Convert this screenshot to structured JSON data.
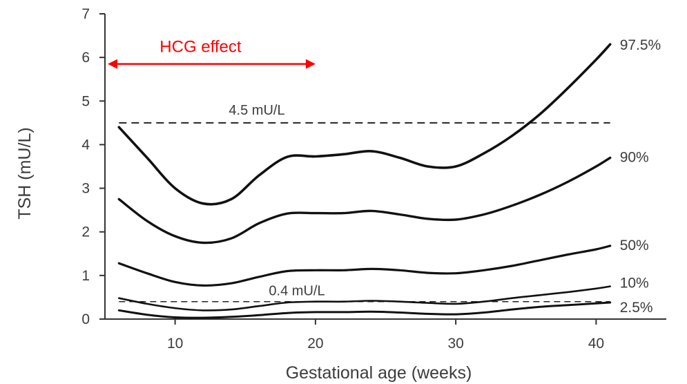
{
  "chart_data": {
    "type": "line",
    "title": "",
    "xlabel": "Gestational age (weeks)",
    "ylabel": "TSH (mU/L)",
    "xlim": [
      5,
      45
    ],
    "ylim": [
      0,
      7
    ],
    "x_ticks": [
      10,
      20,
      30,
      40
    ],
    "y_ticks": [
      0,
      1,
      2,
      3,
      4,
      5,
      6,
      7
    ],
    "grid": false,
    "legend": "none",
    "series": [
      {
        "name": "97.5%",
        "x": [
          6,
          8,
          10,
          12,
          14,
          16,
          18,
          20,
          22,
          24,
          26,
          28,
          30,
          32,
          34,
          36,
          38,
          40,
          41
        ],
        "y": [
          4.4,
          3.7,
          3.0,
          2.65,
          2.75,
          3.3,
          3.72,
          3.73,
          3.78,
          3.85,
          3.7,
          3.5,
          3.5,
          3.8,
          4.2,
          4.7,
          5.3,
          5.95,
          6.3
        ]
      },
      {
        "name": "90%",
        "x": [
          6,
          8,
          10,
          12,
          14,
          16,
          18,
          20,
          22,
          24,
          26,
          28,
          30,
          32,
          34,
          36,
          38,
          40,
          41
        ],
        "y": [
          2.75,
          2.25,
          1.9,
          1.75,
          1.85,
          2.2,
          2.42,
          2.43,
          2.43,
          2.48,
          2.4,
          2.3,
          2.28,
          2.4,
          2.6,
          2.85,
          3.15,
          3.5,
          3.7
        ]
      },
      {
        "name": "50%",
        "x": [
          6,
          8,
          10,
          12,
          14,
          16,
          18,
          20,
          22,
          24,
          26,
          28,
          30,
          32,
          34,
          36,
          38,
          40,
          41
        ],
        "y": [
          1.28,
          1.05,
          0.85,
          0.77,
          0.82,
          0.97,
          1.1,
          1.12,
          1.12,
          1.15,
          1.12,
          1.06,
          1.05,
          1.12,
          1.22,
          1.35,
          1.48,
          1.6,
          1.68
        ]
      },
      {
        "name": "10%",
        "x": [
          6,
          8,
          10,
          12,
          14,
          16,
          18,
          20,
          22,
          24,
          26,
          28,
          30,
          32,
          34,
          36,
          38,
          40,
          41
        ],
        "y": [
          0.48,
          0.35,
          0.25,
          0.2,
          0.22,
          0.3,
          0.38,
          0.4,
          0.4,
          0.42,
          0.4,
          0.37,
          0.35,
          0.4,
          0.48,
          0.55,
          0.62,
          0.7,
          0.75
        ]
      },
      {
        "name": "2.5%",
        "x": [
          6,
          8,
          10,
          12,
          14,
          16,
          18,
          20,
          22,
          24,
          26,
          28,
          30,
          32,
          34,
          36,
          38,
          40,
          41
        ],
        "y": [
          0.2,
          0.1,
          0.04,
          0.03,
          0.05,
          0.09,
          0.14,
          0.16,
          0.16,
          0.17,
          0.15,
          0.12,
          0.11,
          0.15,
          0.22,
          0.28,
          0.32,
          0.36,
          0.38
        ]
      }
    ],
    "reference_lines": [
      {
        "label": "4.5 mU/L",
        "y": 4.5,
        "x_range": [
          6,
          41
        ],
        "style": "dashed"
      },
      {
        "label": "0.4 mU/L",
        "y": 0.4,
        "x_range": [
          6,
          41
        ],
        "style": "dashed"
      }
    ],
    "annotations": [
      {
        "text": "HCG effect",
        "x_range": [
          5,
          20
        ],
        "y": 5.85,
        "color": "#ff0000",
        "style": "double-arrow"
      }
    ]
  }
}
